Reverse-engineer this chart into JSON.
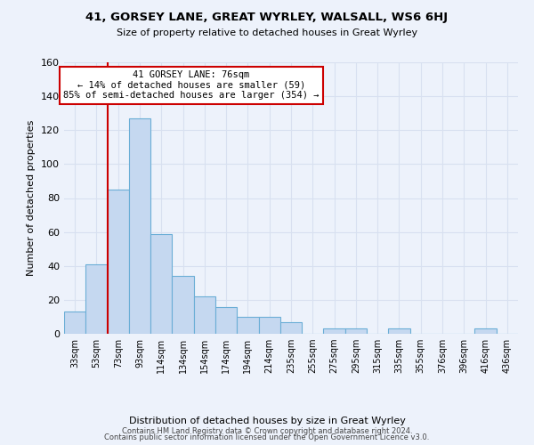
{
  "title": "41, GORSEY LANE, GREAT WYRLEY, WALSALL, WS6 6HJ",
  "subtitle": "Size of property relative to detached houses in Great Wyrley",
  "xlabel": "Distribution of detached houses by size in Great Wyrley",
  "ylabel": "Number of detached properties",
  "footnote1": "Contains HM Land Registry data © Crown copyright and database right 2024.",
  "footnote2": "Contains public sector information licensed under the Open Government Licence v3.0.",
  "bins": [
    "33sqm",
    "53sqm",
    "73sqm",
    "93sqm",
    "114sqm",
    "134sqm",
    "154sqm",
    "174sqm",
    "194sqm",
    "214sqm",
    "235sqm",
    "255sqm",
    "275sqm",
    "295sqm",
    "315sqm",
    "335sqm",
    "355sqm",
    "376sqm",
    "396sqm",
    "416sqm",
    "436sqm"
  ],
  "values": [
    13,
    41,
    85,
    127,
    59,
    34,
    22,
    16,
    10,
    10,
    7,
    0,
    3,
    3,
    0,
    3,
    0,
    0,
    0,
    3,
    0
  ],
  "bar_color": "#c5d8f0",
  "bar_edge_color": "#6baed6",
  "background_color": "#edf2fb",
  "grid_color": "#d8e0f0",
  "property_label": "41 GORSEY LANE: 76sqm",
  "annotation_line1": "← 14% of detached houses are smaller (59)",
  "annotation_line2": "85% of semi-detached houses are larger (354) →",
  "annotation_box_color": "#ffffff",
  "annotation_box_edge": "#cc0000",
  "vline_color": "#cc0000",
  "vline_x_index": 2,
  "ylim": [
    0,
    160
  ],
  "yticks": [
    0,
    20,
    40,
    60,
    80,
    100,
    120,
    140,
    160
  ]
}
